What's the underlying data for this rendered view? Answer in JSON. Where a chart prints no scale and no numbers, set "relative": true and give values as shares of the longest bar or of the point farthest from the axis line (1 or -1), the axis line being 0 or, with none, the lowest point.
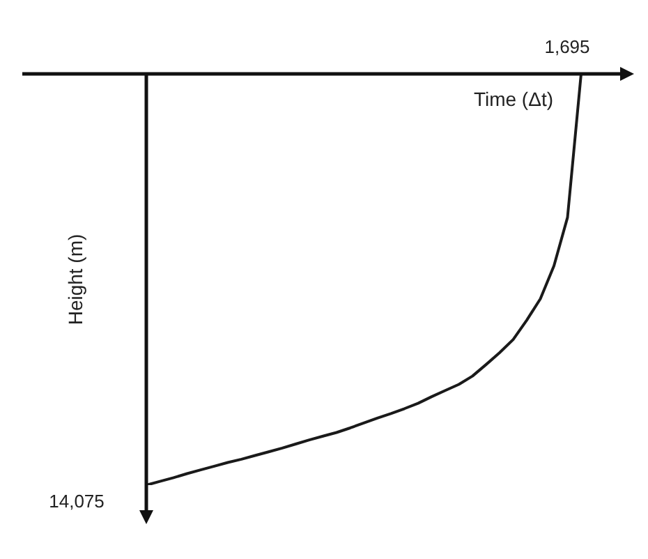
{
  "chart_data": {
    "type": "line",
    "relative": true,
    "xlabel": "Time (Δt)",
    "ylabel": "Height (m)",
    "categories": [
      null,
      null,
      null,
      null,
      null,
      null,
      null,
      null,
      null,
      null,
      null,
      null,
      null,
      null,
      null,
      null,
      null,
      null,
      null,
      null,
      null,
      null,
      null,
      null,
      null,
      null,
      null,
      null,
      null,
      null,
      null,
      null,
      null
    ],
    "series": [
      {
        "color": "#1a1a1a",
        "values": [
          -1,
          -0.991,
          -0.982,
          -0.972,
          -0.963,
          -0.954,
          -0.945,
          -0.937,
          -0.928,
          -0.919,
          -0.91,
          -0.9,
          -0.89,
          -0.881,
          -0.872,
          -0.861,
          -0.849,
          -0.837,
          -0.826,
          -0.814,
          -0.801,
          -0.785,
          -0.77,
          -0.755,
          -0.735,
          -0.707,
          -0.678,
          -0.646,
          -0.599,
          -0.547,
          -0.467,
          -0.349,
          0
        ]
      }
    ],
    "annotations": [
      "1,695",
      "14,075"
    ],
    "legend": false,
    "marker": "none",
    "line_style": "solid"
  }
}
